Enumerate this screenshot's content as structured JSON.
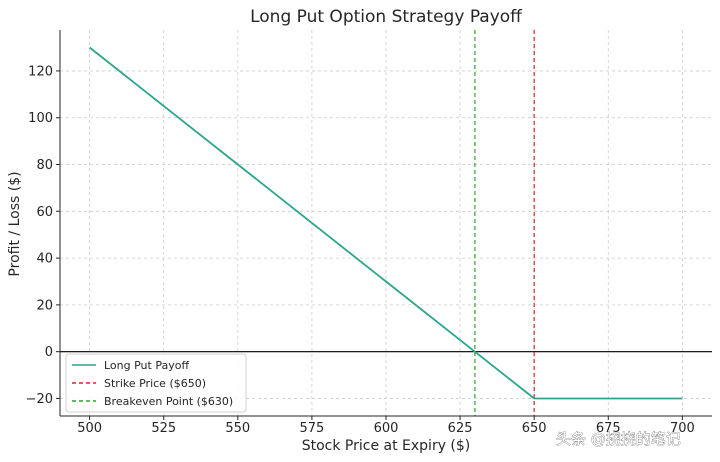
{
  "watermark": "头条 @挠挠的笔记",
  "chart_data": {
    "type": "line",
    "title": "Long Put Option Strategy Payoff",
    "xlabel": "Stock Price at Expiry ($)",
    "ylabel": "Profit / Loss ($)",
    "xlim": [
      490,
      710
    ],
    "ylim": [
      -27.5,
      137.5
    ],
    "xticks": [
      500,
      525,
      550,
      575,
      600,
      625,
      650,
      675,
      700
    ],
    "yticks": [
      -20,
      0,
      20,
      40,
      60,
      80,
      100,
      120
    ],
    "ytick_labels": [
      "−20",
      "0",
      "20",
      "40",
      "60",
      "80",
      "100",
      "120"
    ],
    "grid": true,
    "legend_position": "lower-left",
    "series": [
      {
        "name": "Long Put Payoff",
        "color": "#2ca58d",
        "style": "solid",
        "x": [
          500,
          650,
          700
        ],
        "y": [
          130,
          -20,
          -20
        ]
      }
    ],
    "vlines": [
      {
        "name": "Strike Price ($650)",
        "x": 650,
        "color": "#d62728",
        "style": "dashed"
      },
      {
        "name": "Breakeven Point ($630)",
        "x": 630,
        "color": "#2ca02c",
        "style": "dashed"
      }
    ],
    "hline": {
      "y": 0,
      "color": "#000000"
    }
  }
}
